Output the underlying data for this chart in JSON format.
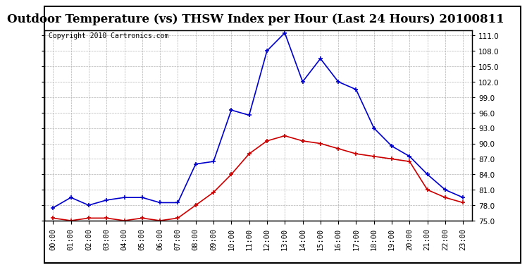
{
  "title": "Outdoor Temperature (vs) THSW Index per Hour (Last 24 Hours) 20100811",
  "copyright": "Copyright 2010 Cartronics.com",
  "hours": [
    "00:00",
    "01:00",
    "02:00",
    "03:00",
    "04:00",
    "05:00",
    "06:00",
    "07:00",
    "08:00",
    "09:00",
    "10:00",
    "11:00",
    "12:00",
    "13:00",
    "14:00",
    "15:00",
    "16:00",
    "17:00",
    "18:00",
    "19:00",
    "20:00",
    "21:00",
    "22:00",
    "23:00"
  ],
  "thsw": [
    77.5,
    79.5,
    78.0,
    79.0,
    79.5,
    79.5,
    78.5,
    78.5,
    86.0,
    86.5,
    96.5,
    95.5,
    108.0,
    111.5,
    102.0,
    106.5,
    102.0,
    100.5,
    93.0,
    89.5,
    87.5,
    84.0,
    81.0,
    79.5
  ],
  "temp": [
    75.5,
    75.0,
    75.5,
    75.5,
    75.0,
    75.5,
    75.0,
    75.5,
    78.0,
    80.5,
    84.0,
    88.0,
    90.5,
    91.5,
    90.5,
    90.0,
    89.0,
    88.0,
    87.5,
    87.0,
    86.5,
    81.0,
    79.5,
    78.5
  ],
  "thsw_color": "#0000cc",
  "temp_color": "#cc0000",
  "background": "#ffffff",
  "grid_color": "#aaaaaa",
  "ylim": [
    75.0,
    112.0
  ],
  "yticks": [
    75.0,
    78.0,
    81.0,
    84.0,
    87.0,
    90.0,
    93.0,
    96.0,
    99.0,
    102.0,
    105.0,
    108.0,
    111.0
  ],
  "title_fontsize": 12,
  "copyright_fontsize": 7,
  "tick_fontsize": 7.5
}
